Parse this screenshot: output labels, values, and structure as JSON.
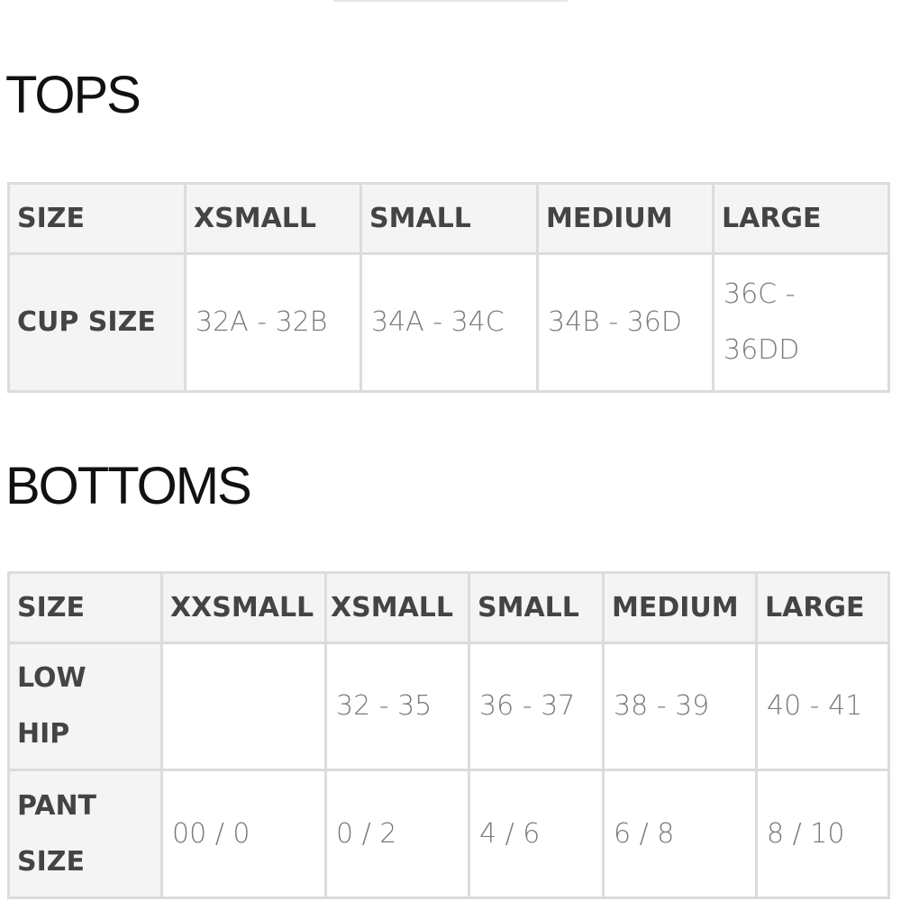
{
  "tops": {
    "title": "TOPS",
    "headers": [
      "SIZE",
      "XSMALL",
      "SMALL",
      "MEDIUM",
      "LARGE"
    ],
    "rows": [
      {
        "label": "CUP SIZE",
        "values": [
          "32A - 32B",
          "34A - 34C",
          "34B - 36D",
          "36C - 36DD"
        ]
      }
    ]
  },
  "bottoms": {
    "title": "BOTTOMS",
    "headers": [
      "SIZE",
      "XXSMALL",
      "XSMALL",
      "SMALL",
      "MEDIUM",
      "LARGE"
    ],
    "rows": [
      {
        "label": "LOW HIP",
        "values": [
          "",
          "32 - 35",
          "36 - 37",
          "38 - 39",
          "40 - 41"
        ]
      },
      {
        "label": "PANT SIZE",
        "values": [
          "00 / 0",
          "0 / 2",
          "4 / 6",
          "6 / 8",
          "8 / 10"
        ]
      }
    ]
  }
}
